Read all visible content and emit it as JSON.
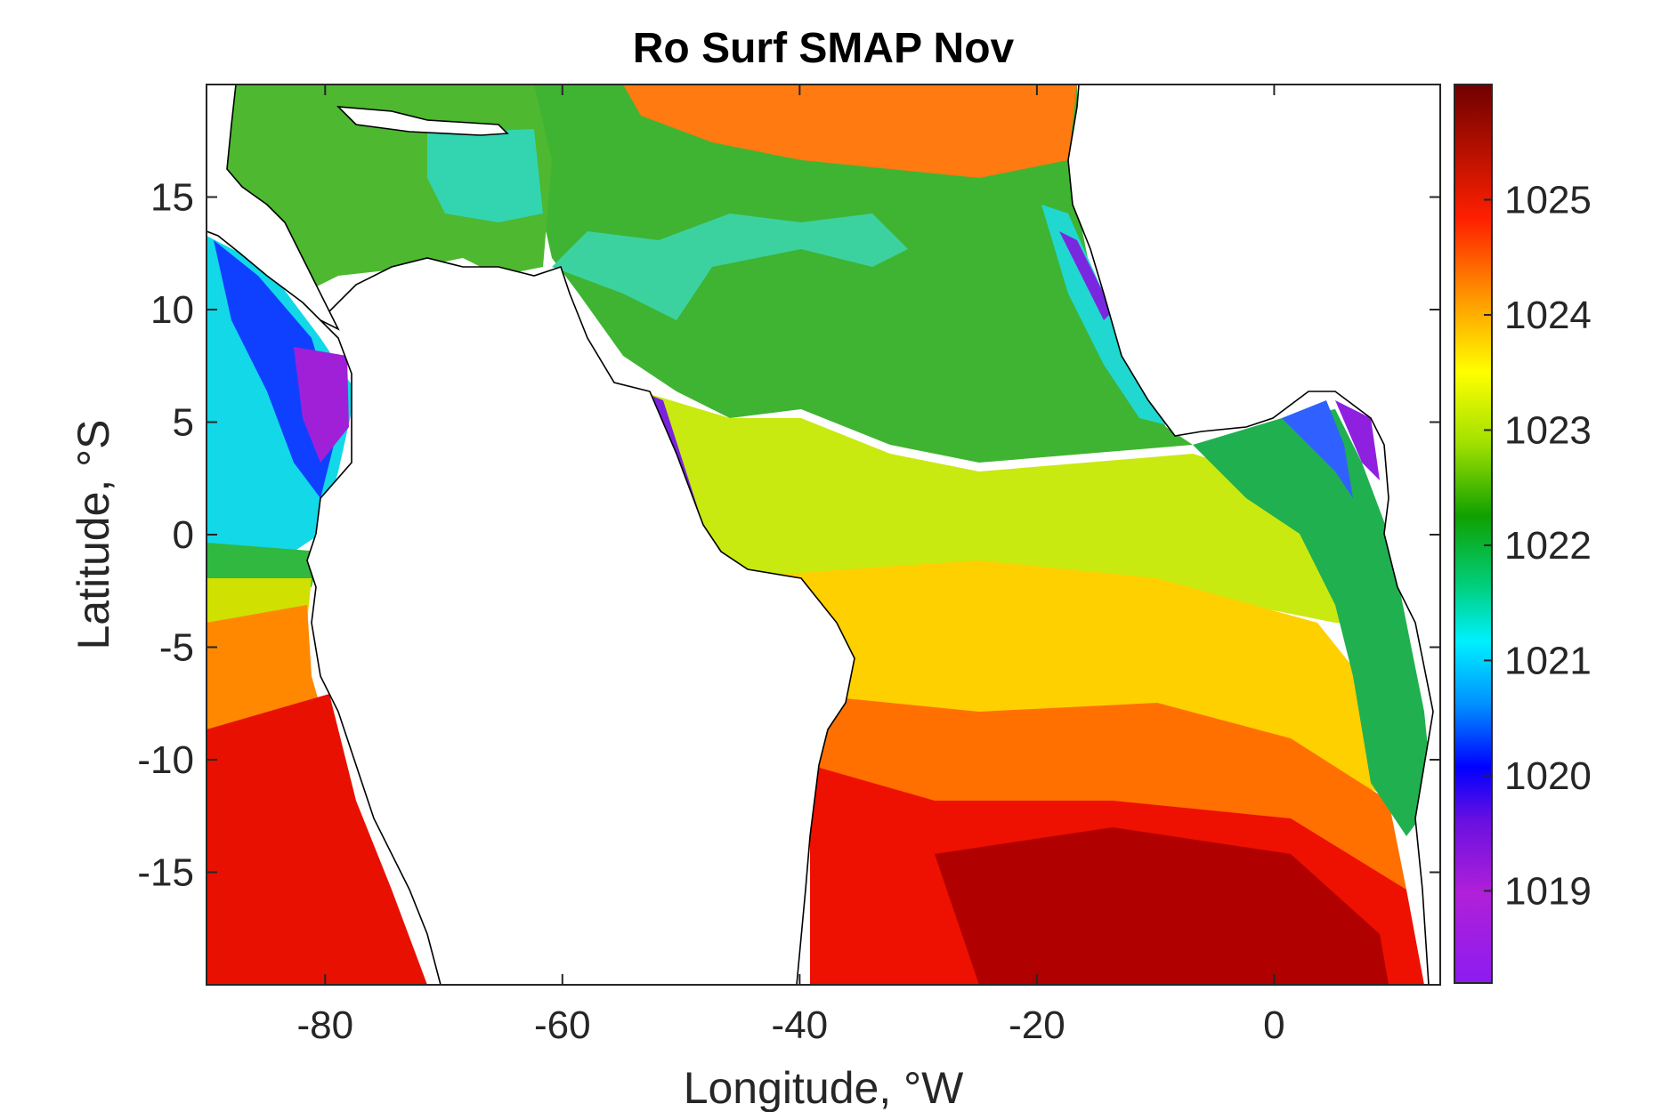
{
  "chart_data": {
    "type": "heatmap",
    "title": "Ro Surf SMAP Nov",
    "xlabel": "Longitude, °W",
    "ylabel": "Latitude, °S",
    "xlim": [
      -90,
      14
    ],
    "ylim": [
      -20,
      20
    ],
    "x_ticks": [
      -80,
      -60,
      -40,
      -20,
      0
    ],
    "x_tick_labels": [
      "-80",
      "-60",
      "-40",
      "-20",
      "0"
    ],
    "y_ticks": [
      15,
      10,
      5,
      0,
      -5,
      -10,
      -15
    ],
    "y_tick_labels": [
      "15",
      "10",
      "5",
      "0",
      "-5",
      "-10",
      "-15"
    ],
    "colorbar": {
      "range": [
        1018.2,
        1026.0
      ],
      "ticks": [
        1025,
        1024,
        1023,
        1022,
        1021,
        1020,
        1019
      ],
      "tick_labels": [
        "1025",
        "1024",
        "1023",
        "1022",
        "1021",
        "1020",
        "1019"
      ],
      "colormap": "jet-like (purple-blue-cyan-green-yellow-orange-red-darkred)"
    },
    "grid": false,
    "land_color": "#ffffff",
    "coastline_color": "#000000"
  }
}
